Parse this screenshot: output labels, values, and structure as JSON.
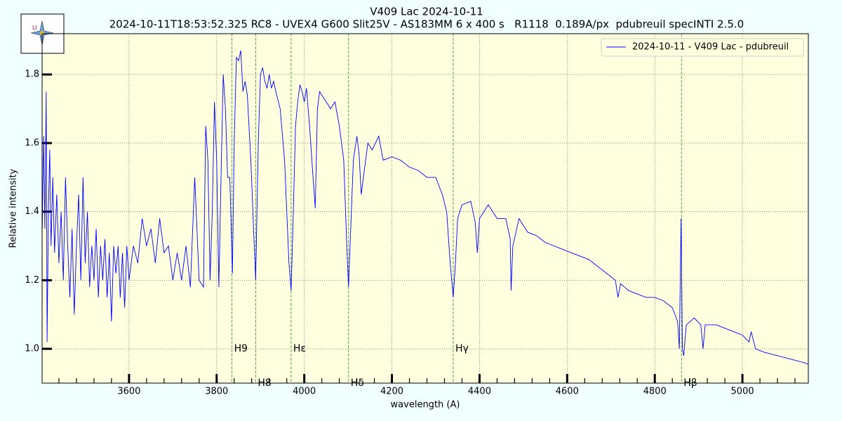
{
  "chart_data": {
    "type": "line",
    "title": "V409 Lac 2024-10-11",
    "subtitle": "2024-10-11T18:53:52.325 RC8 - UVEX4 G600 Slit25V - AS183MM 6 x 400 s   R1118  0.189A/px  pdubreuil specINTI 2.5.0",
    "x_label": "wavelength (A)",
    "y_label": "Relative intensity",
    "xlim": [
      3401.6,
      5150.4
    ],
    "ylim": [
      0.9,
      1.919
    ],
    "xticks": [
      3600,
      3800,
      4000,
      4200,
      4400,
      4600,
      4800,
      5000
    ],
    "xminorticks": [
      3440,
      3480,
      3520,
      3560,
      3640,
      3680,
      3720,
      3760,
      3840,
      3880,
      3920,
      3960,
      4040,
      4080,
      4120,
      4160,
      4240,
      4280,
      4320,
      4360,
      4440,
      4480,
      4520,
      4560,
      4640,
      4680,
      4720,
      4760,
      4840,
      4880,
      4920,
      4960,
      5040,
      5080,
      5120
    ],
    "yticks": [
      {
        "value": 1,
        "label": "1.0"
      },
      1.2,
      1.4,
      1.6,
      1.8
    ],
    "grid": true,
    "legend": "upper right",
    "annotations": [
      {
        "x": 3835,
        "label": "H9"
      },
      {
        "x": 3889,
        "label": "H8"
      },
      {
        "x": 3970,
        "label": "Hε"
      },
      {
        "x": 4101,
        "label": "Hδ"
      },
      {
        "x": 4340,
        "label": "Hγ"
      },
      {
        "x": 4861,
        "label": "Hβ"
      }
    ],
    "x": [
      3402,
      3405,
      3408,
      3411,
      3413,
      3416,
      3419,
      3422,
      3426,
      3430,
      3435,
      3440,
      3445,
      3450,
      3455,
      3460,
      3465,
      3470,
      3475,
      3480,
      3485,
      3490,
      3495,
      3500,
      3505,
      3510,
      3515,
      3520,
      3525,
      3530,
      3535,
      3540,
      3545,
      3550,
      3555,
      3560,
      3565,
      3570,
      3575,
      3580,
      3585,
      3590,
      3595,
      3600,
      3610,
      3620,
      3630,
      3640,
      3650,
      3660,
      3670,
      3680,
      3690,
      3700,
      3710,
      3720,
      3730,
      3740,
      3750,
      3755,
      3760,
      3770,
      3775,
      3780,
      3785,
      3790,
      3795,
      3800,
      3805,
      3810,
      3815,
      3820,
      3825,
      3830,
      3836,
      3840,
      3845,
      3850,
      3855,
      3860,
      3865,
      3870,
      3878,
      3889,
      3895,
      3900,
      3905,
      3910,
      3915,
      3920,
      3925,
      3930,
      3935,
      3945,
      3955,
      3965,
      3970,
      3975,
      3980,
      3985,
      3990,
      3995,
      4000,
      4005,
      4012,
      4020,
      4025,
      4030,
      4035,
      4040,
      4050,
      4060,
      4070,
      4080,
      4090,
      4097,
      4101,
      4106,
      4112,
      4120,
      4125,
      4130,
      4135,
      4145,
      4155,
      4170,
      4180,
      4200,
      4220,
      4240,
      4260,
      4280,
      4300,
      4315,
      4325,
      4333,
      4340,
      4345,
      4350,
      4360,
      4380,
      4390,
      4395,
      4400,
      4420,
      4440,
      4460,
      4470,
      4472,
      4476,
      4490,
      4510,
      4530,
      4550,
      4570,
      4590,
      4610,
      4630,
      4650,
      4670,
      4690,
      4710,
      4716,
      4722,
      4740,
      4760,
      4780,
      4800,
      4820,
      4840,
      4852,
      4856,
      4860,
      4863,
      4866,
      4872,
      4890,
      4905,
      4910,
      4915,
      4940,
      4960,
      4980,
      5000,
      5015,
      5020,
      5030,
      5050,
      5080,
      5110,
      5140,
      5150
    ],
    "series": [
      {
        "name": "2024-10-11 - V409 Lac - pdubreuil",
        "color": "#0000ff",
        "values": [
          1.35,
          1.62,
          1.35,
          1.75,
          1.02,
          1.4,
          1.58,
          1.3,
          1.5,
          1.28,
          1.45,
          1.25,
          1.4,
          1.2,
          1.5,
          1.3,
          1.15,
          1.35,
          1.1,
          1.3,
          1.45,
          1.2,
          1.5,
          1.25,
          1.4,
          1.18,
          1.3,
          1.2,
          1.35,
          1.15,
          1.3,
          1.2,
          1.32,
          1.15,
          1.28,
          1.08,
          1.3,
          1.22,
          1.3,
          1.15,
          1.28,
          1.12,
          1.3,
          1.2,
          1.3,
          1.25,
          1.38,
          1.3,
          1.35,
          1.25,
          1.38,
          1.28,
          1.3,
          1.2,
          1.28,
          1.2,
          1.3,
          1.18,
          1.5,
          1.35,
          1.2,
          1.18,
          1.65,
          1.55,
          1.2,
          1.4,
          1.72,
          1.55,
          1.18,
          1.5,
          1.8,
          1.7,
          1.5,
          1.5,
          1.22,
          1.6,
          1.85,
          1.84,
          1.87,
          1.75,
          1.78,
          1.74,
          1.55,
          1.2,
          1.6,
          1.8,
          1.82,
          1.78,
          1.76,
          1.8,
          1.76,
          1.78,
          1.75,
          1.7,
          1.55,
          1.25,
          1.17,
          1.4,
          1.65,
          1.72,
          1.77,
          1.75,
          1.72,
          1.76,
          1.65,
          1.5,
          1.41,
          1.7,
          1.75,
          1.74,
          1.72,
          1.7,
          1.72,
          1.65,
          1.55,
          1.3,
          1.18,
          1.35,
          1.55,
          1.62,
          1.57,
          1.45,
          1.5,
          1.6,
          1.58,
          1.62,
          1.55,
          1.56,
          1.55,
          1.53,
          1.52,
          1.5,
          1.5,
          1.45,
          1.4,
          1.25,
          1.15,
          1.25,
          1.38,
          1.42,
          1.43,
          1.37,
          1.28,
          1.38,
          1.42,
          1.38,
          1.38,
          1.32,
          1.17,
          1.3,
          1.38,
          1.34,
          1.33,
          1.31,
          1.3,
          1.29,
          1.28,
          1.27,
          1.26,
          1.24,
          1.22,
          1.2,
          1.15,
          1.19,
          1.17,
          1.16,
          1.15,
          1.15,
          1.14,
          1.12,
          1.08,
          1.0,
          1.38,
          1.0,
          0.98,
          1.07,
          1.09,
          1.07,
          1.0,
          1.07,
          1.07,
          1.06,
          1.05,
          1.04,
          1.02,
          1.05,
          1.0,
          0.99,
          0.98,
          0.97,
          0.96,
          0.955
        ]
      }
    ]
  }
}
